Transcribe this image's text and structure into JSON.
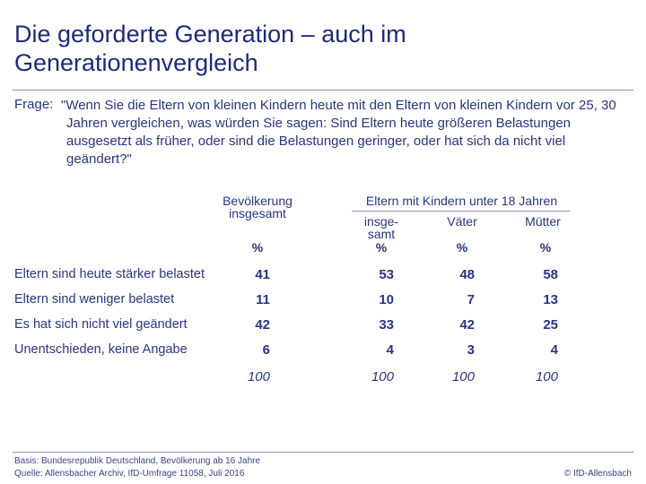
{
  "header": {
    "title": "Die geforderte Generation – auch im Generationenvergleich"
  },
  "question": {
    "label": "Frage:",
    "text": "\"Wenn Sie die Eltern von kleinen Kindern heute mit den Eltern von kleinen Kindern vor 25, 30 Jahren vergleichen, was würden Sie sagen: Sind Eltern heute größeren Belastungen ausgesetzt als früher, oder sind die Belastungen geringer, oder hat sich da nicht viel geändert?\""
  },
  "table": {
    "group_header": "Eltern mit Kindern unter 18 Jahren",
    "columns": [
      "Bevölkerung\ninsgesamt",
      "insge-\nsamt",
      "Väter",
      "Mütter"
    ],
    "units": [
      "%",
      "%",
      "%",
      "%"
    ],
    "rows": [
      {
        "label": "Eltern sind heute stärker belastet",
        "values": [
          41,
          53,
          48,
          58
        ]
      },
      {
        "label": "Eltern sind weniger belastet",
        "values": [
          11,
          10,
          7,
          13
        ]
      },
      {
        "label": "Es hat sich nicht viel geändert",
        "values": [
          42,
          33,
          42,
          25
        ]
      },
      {
        "label": "Unentschieden, keine Angabe",
        "values": [
          6,
          4,
          3,
          4
        ]
      }
    ],
    "totals": [
      100,
      100,
      100,
      100
    ]
  },
  "footer": {
    "basis": "Basis: Bundesrepublik Deutschland, Bevölkerung ab 16 Jahre",
    "source": "Quelle: Allensbacher Archiv, IfD-Umfrage 11058, Juli 2016",
    "copyright": "© IfD-Allensbach"
  }
}
